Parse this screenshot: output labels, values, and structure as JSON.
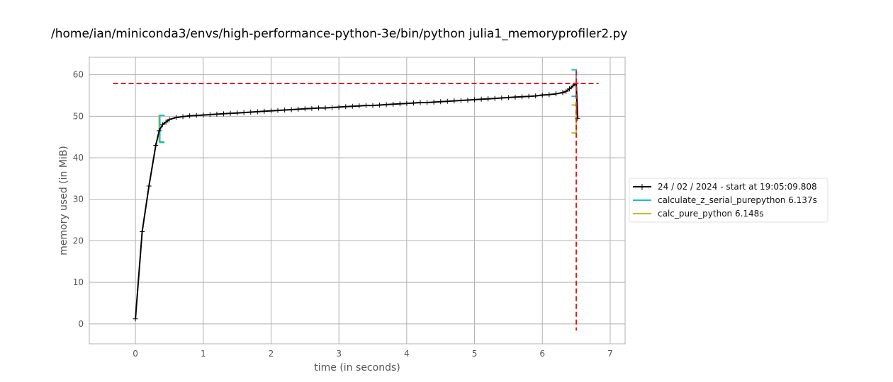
{
  "chart_data": {
    "type": "line",
    "title": "/home/ian/miniconda3/envs/high-performance-python-3e/bin/python julia1_memoryprofiler2.py",
    "xlabel": "time (in seconds)",
    "ylabel": "memory used (in MiB)",
    "xlim": [
      -0.68,
      7.22
    ],
    "ylim": [
      -4.8,
      64.2
    ],
    "xticks": [
      0,
      1,
      2,
      3,
      4,
      5,
      6,
      7
    ],
    "yticks": [
      0,
      10,
      20,
      30,
      40,
      50,
      60
    ],
    "grid": true,
    "legend_position": "center-right outside",
    "series": [
      {
        "name": "24 / 02 / 2024 - start at 19:05:09.808",
        "color": "#000000",
        "marker": "+",
        "x": [
          0.0,
          0.1,
          0.2,
          0.3,
          0.35,
          0.4,
          0.45,
          0.5,
          0.6,
          0.7,
          0.8,
          0.9,
          1.0,
          1.1,
          1.2,
          1.3,
          1.4,
          1.5,
          1.6,
          1.7,
          1.8,
          1.9,
          2.0,
          2.1,
          2.2,
          2.3,
          2.4,
          2.5,
          2.6,
          2.7,
          2.8,
          2.9,
          3.0,
          3.1,
          3.2,
          3.3,
          3.4,
          3.5,
          3.6,
          3.7,
          3.8,
          3.9,
          4.0,
          4.1,
          4.2,
          4.3,
          4.4,
          4.5,
          4.6,
          4.7,
          4.8,
          4.9,
          5.0,
          5.1,
          5.2,
          5.3,
          5.4,
          5.5,
          5.6,
          5.7,
          5.8,
          5.9,
          6.0,
          6.1,
          6.2,
          6.3,
          6.35,
          6.4,
          6.45,
          6.5,
          6.52
        ],
        "y": [
          1.2,
          22.2,
          33.2,
          43.0,
          46.5,
          48.0,
          48.6,
          49.2,
          49.7,
          49.9,
          50.1,
          50.2,
          50.3,
          50.4,
          50.5,
          50.6,
          50.7,
          50.8,
          50.9,
          51.0,
          51.1,
          51.2,
          51.3,
          51.4,
          51.5,
          51.6,
          51.7,
          51.8,
          51.9,
          52.0,
          52.0,
          52.1,
          52.2,
          52.3,
          52.4,
          52.5,
          52.6,
          52.6,
          52.7,
          52.8,
          52.9,
          53.0,
          53.1,
          53.2,
          53.3,
          53.3,
          53.4,
          53.5,
          53.6,
          53.7,
          53.8,
          53.9,
          54.0,
          54.1,
          54.2,
          54.3,
          54.4,
          54.5,
          54.6,
          54.7,
          54.8,
          54.9,
          55.1,
          55.2,
          55.4,
          55.7,
          56.0,
          56.6,
          57.3,
          58.0,
          49.5
        ]
      },
      {
        "name": "calculate_z_serial_purepython 6.137s",
        "color": "#17becf",
        "bracket_start": {
          "x": 0.36,
          "ymin": 43.7,
          "ymax": 50.2
        },
        "bracket_end": {
          "x": 6.5,
          "ymin": 54.8,
          "ymax": 61.2
        }
      },
      {
        "name": "calc_pure_python 6.148s",
        "color": "#bcbd22",
        "bracket_start": {
          "x": 0.35,
          "ymin": 43.9,
          "ymax": 50.2
        },
        "bracket_end": {
          "x": 6.5,
          "ymin": 46.0,
          "ymax": 52.7
        }
      }
    ],
    "reference_lines": {
      "color": "#e31a1c",
      "horizontal_y": 57.9,
      "horizontal_x_range": [
        -0.33,
        6.83
      ],
      "vertical_x": 6.5,
      "vertical_y_range": [
        -1.6,
        61.0
      ]
    }
  }
}
